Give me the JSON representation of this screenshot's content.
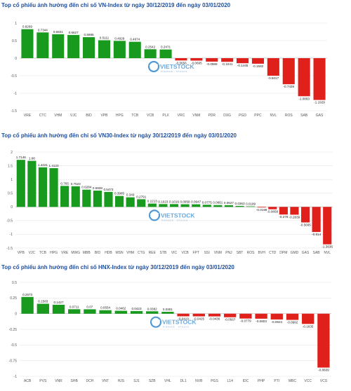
{
  "chart_data": [
    {
      "type": "bar",
      "title": "Top cổ phiếu ảnh hưởng đến chỉ số VN-Index từ ngày 30/12/2019 đến ngày 03/01/2020",
      "categories": [
        "VRE",
        "CTC",
        "VHM",
        "VJC",
        "BID",
        "VPB",
        "HPG",
        "TCB",
        "VCB",
        "PLX",
        "VRC",
        "VNM",
        "PDR",
        "DXG",
        "PGD",
        "PPC",
        "NVL",
        "ROS",
        "SAB",
        "GAS"
      ],
      "values": [
        0.8269,
        0.7344,
        0.6831,
        0.6627,
        0.5986,
        0.5111,
        0.4929,
        0.4674,
        0.2542,
        0.2471,
        -0.0656,
        -0.0695,
        -0.0989,
        -0.1041,
        -0.1445,
        -0.1582,
        -0.5017,
        -0.7438,
        -1.0863,
        -1.1929
      ],
      "labels": [
        "0.8269",
        "0.7344",
        "0.6831",
        "0.6627",
        "0.5986",
        "0.5111",
        "0.4929",
        "0.4674",
        "0.2542",
        "0.2471",
        "-0.0656",
        "-0.0695",
        "-0.0989",
        "-0.1041",
        "-0.1445",
        "-0.1582",
        "-0.5017",
        "-0.7438",
        "-1.0863",
        "-1.1929"
      ],
      "ylim": [
        -1.5,
        1
      ],
      "yticks": [
        -1.5,
        -1,
        -0.5,
        0,
        0.5,
        1
      ],
      "ytick_labels": [
        "-1.5",
        "-1",
        "-0.5",
        "0",
        "0.5",
        "1"
      ],
      "grid": true,
      "positive_color": "#179a1e",
      "negative_color": "#e0201b"
    },
    {
      "type": "bar",
      "title": "Top cổ phiếu ảnh hưởng đến chỉ số VN30-Index từ ngày 30/12/2019 đến ngày 03/01/2020",
      "categories": [
        "VPB",
        "VJC",
        "TCB",
        "HPG",
        "VRE",
        "MWG",
        "MBB",
        "BID",
        "HDB",
        "MSN",
        "VHM",
        "CTG",
        "REE",
        "STB",
        "VIC",
        "VCB",
        "FPT",
        "SSI",
        "VNM",
        "PNJ",
        "SBT",
        "ROS",
        "BVH",
        "CTD",
        "DPM",
        "GMD",
        "GAS",
        "SAB",
        "NVL"
      ],
      "values": [
        1.7146,
        1.68,
        1.4421,
        1.4123,
        0.765,
        0.7523,
        0.6284,
        0.5938,
        0.5473,
        0.3985,
        0.349,
        0.2791,
        0.1213,
        0.1023,
        0.1016,
        0.0958,
        0.0947,
        0.0775,
        0.0661,
        0.0627,
        0.0363,
        0.0189,
        -0.0198,
        -0.0858,
        -0.278,
        -0.2839,
        -0.5665,
        -0.914,
        -1.3636
      ],
      "labels": [
        "1.7146",
        "1.68",
        "1.4421",
        "1.4123",
        "0.765",
        "0.7523",
        "0.6284",
        "0.5938",
        "0.5473",
        "0.3985",
        "0.349",
        "0.2791",
        "0.1213",
        "0.1023",
        "0.1016",
        "0.0958",
        "0.0947",
        "0.0775",
        "0.0661",
        "0.0627",
        "0.0363",
        "0.0189",
        "-0.0198",
        "-0.0858",
        "-0.278",
        "-0.2839",
        "-0.5665",
        "-0.914",
        "-1.3636"
      ],
      "xtick_labels": [
        "VPB",
        "VJC",
        "TCB",
        "HPG",
        "VRE",
        "MWG",
        "MBB",
        "BID",
        "HDB",
        "MSN",
        "VHM",
        "CTG",
        "REE",
        "STB",
        "VIC",
        "VCB",
        "FPT",
        "SSI",
        "VNM",
        "PNJ",
        "SBT",
        "ROS",
        "BVH",
        "CTD",
        "DPM",
        "GMD",
        "GAS",
        "SAB",
        "NVL"
      ],
      "ylim": [
        -1.5,
        2
      ],
      "yticks": [
        -1.5,
        -1,
        -0.5,
        0,
        0.5,
        1,
        1.5,
        2
      ],
      "ytick_labels": [
        "-1.5",
        "-1",
        "-0.5",
        "0",
        "0.5",
        "1",
        "1.5",
        "2"
      ],
      "grid": true,
      "positive_color": "#179a1e",
      "negative_color": "#e0201b"
    },
    {
      "type": "bar",
      "title": "Top cổ phiếu ảnh hưởng đến chỉ số HNX-Index từ ngày 30/12/2019 đến ngày 03/01/2020",
      "categories": [
        "ACB",
        "PVS",
        "VNR",
        "SHB",
        "DCH",
        "VNT",
        "HJS",
        "SJ1",
        "SZB",
        "VHL",
        "DL1",
        "NVB",
        "PGS",
        "L14",
        "IDC",
        "PHP",
        "PTI",
        "MBC",
        "VCC",
        "VCS"
      ],
      "values": [
        0.2673,
        0.1583,
        0.1427,
        0.0711,
        0.07,
        0.0554,
        0.0462,
        0.0423,
        0.0382,
        0.0301,
        -0.0419,
        -0.0425,
        -0.0436,
        -0.0567,
        -0.0779,
        -0.0803,
        -0.0924,
        -0.0992,
        -0.1635,
        -0.8609
      ],
      "labels": [
        "0.2673",
        "0.1583",
        "0.1427",
        "0.0711",
        "0.07",
        "0.0554",
        "0.0462",
        "0.0423",
        "0.0382",
        "0.0301",
        "-0.0419",
        "-0.0425",
        "-0.0436",
        "-0.0567",
        "-0.0779",
        "-0.0803",
        "-0.0924",
        "-0.0992",
        "-0.1635",
        "-0.8609"
      ],
      "ylim": [
        -1,
        0.5
      ],
      "yticks": [
        -1,
        -0.75,
        -0.5,
        -0.25,
        0,
        0.25,
        0.5
      ],
      "ytick_labels": [
        "-1",
        "-0.75",
        "-0.5",
        "-0.25",
        "0",
        "0.25",
        "0.5"
      ],
      "grid": true,
      "positive_color": "#179a1e",
      "negative_color": "#e0201b"
    }
  ],
  "watermark": {
    "brand": "VIETSTOCK",
    "tagline": "FINANCE · STOCKS",
    "logo_color": "#3f8fd2"
  }
}
